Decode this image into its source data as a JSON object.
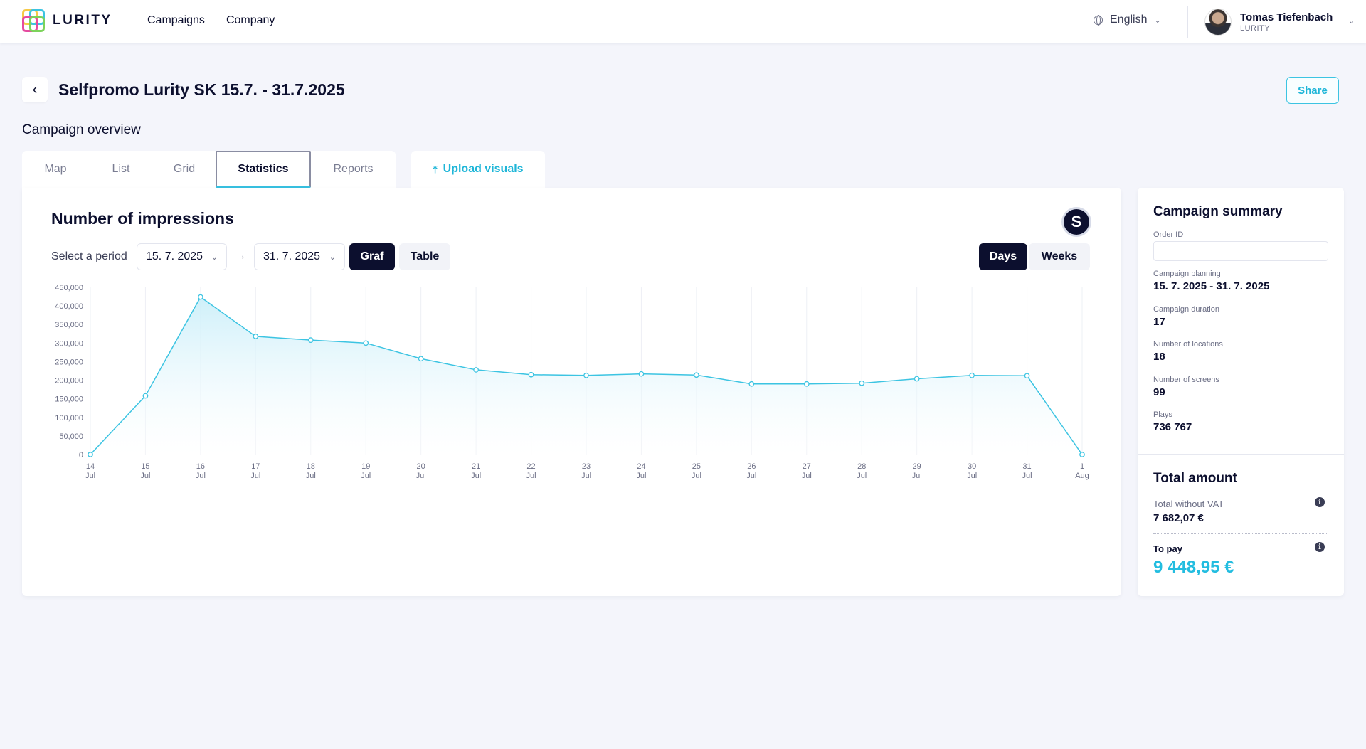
{
  "header": {
    "logo_text": "LURITY",
    "nav": [
      "Campaigns",
      "Company"
    ],
    "language": "English",
    "user_name": "Tomas Tiefenbach",
    "user_org": "LURITY"
  },
  "page": {
    "title": "Selfpromo Lurity SK 15.7. - 31.7.2025",
    "share_label": "Share",
    "section_title": "Campaign overview"
  },
  "tabs": {
    "items": [
      "Map",
      "List",
      "Grid",
      "Statistics",
      "Reports"
    ],
    "active": "Statistics",
    "upload_label": "Upload visuals"
  },
  "stats": {
    "title": "Number of impressions",
    "period_label": "Select a period",
    "date_from": "15. 7. 2025",
    "date_to": "31. 7. 2025",
    "view_graf": "Graf",
    "view_table": "Table",
    "granularity_days": "Days",
    "granularity_weeks": "Weeks",
    "badge": "S"
  },
  "chart_data": {
    "type": "area",
    "title": "",
    "xlabel": "",
    "ylabel": "",
    "x_day": [
      "14",
      "15",
      "16",
      "17",
      "18",
      "19",
      "20",
      "21",
      "22",
      "23",
      "24",
      "25",
      "26",
      "27",
      "28",
      "29",
      "30",
      "31",
      "1"
    ],
    "x_month": [
      "Jul",
      "Jul",
      "Jul",
      "Jul",
      "Jul",
      "Jul",
      "Jul",
      "Jul",
      "Jul",
      "Jul",
      "Jul",
      "Jul",
      "Jul",
      "Jul",
      "Jul",
      "Jul",
      "Jul",
      "Jul",
      "Aug"
    ],
    "values": [
      0,
      158000,
      424000,
      318000,
      308000,
      300000,
      258000,
      228000,
      215000,
      213000,
      217000,
      214000,
      190000,
      190000,
      192000,
      204000,
      213000,
      212000,
      0
    ],
    "y_ticks": [
      "0",
      "50,000",
      "100,000",
      "150,000",
      "200,000",
      "250,000",
      "300,000",
      "350,000",
      "400,000",
      "450,000"
    ],
    "ylim": [
      0,
      450000
    ],
    "grid": "vertical",
    "line_color": "#3cc4e2",
    "fill_color": "#d8f2fb"
  },
  "summary": {
    "title": "Campaign summary",
    "order_id_label": "Order ID",
    "order_id_value": "",
    "planning_label": "Campaign planning",
    "planning_value": "15. 7. 2025 - 31. 7. 2025",
    "duration_label": "Campaign duration",
    "duration_value": "17",
    "locations_label": "Number of locations",
    "locations_value": "18",
    "screens_label": "Number of screens",
    "screens_value": "99",
    "plays_label": "Plays",
    "plays_value": "736 767",
    "total_title": "Total amount",
    "without_vat_label": "Total without VAT",
    "without_vat_value": "7 682,07 €",
    "to_pay_label": "To pay",
    "to_pay_value": "9 448,95 €"
  },
  "colors": {
    "accent": "#23bde0",
    "dark": "#0c0f2e",
    "background": "#f4f5fb"
  }
}
